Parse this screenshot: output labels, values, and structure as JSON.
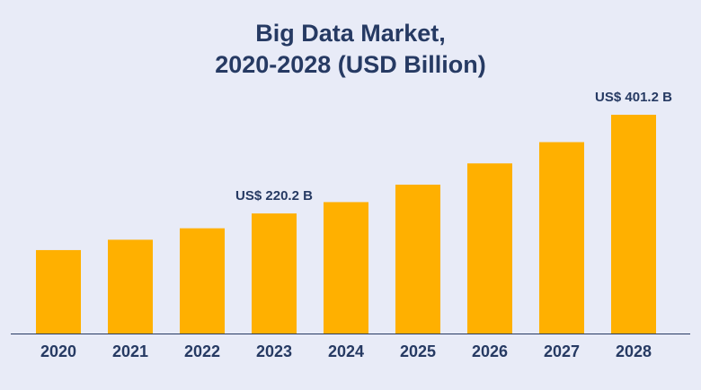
{
  "chart_data": {
    "type": "bar",
    "title": [
      "Big Data Market,",
      "2020-2028 (USD Billion)"
    ],
    "categories": [
      "2020",
      "2021",
      "2022",
      "2023",
      "2024",
      "2025",
      "2026",
      "2027",
      "2028"
    ],
    "values": [
      153,
      172,
      193,
      220.2,
      241,
      273,
      312,
      351,
      401.2
    ],
    "value_labels": [
      null,
      null,
      null,
      "US$ 220.2 B",
      null,
      null,
      null,
      null,
      "US$ 401.2 B"
    ],
    "color": "#ffb000"
  }
}
